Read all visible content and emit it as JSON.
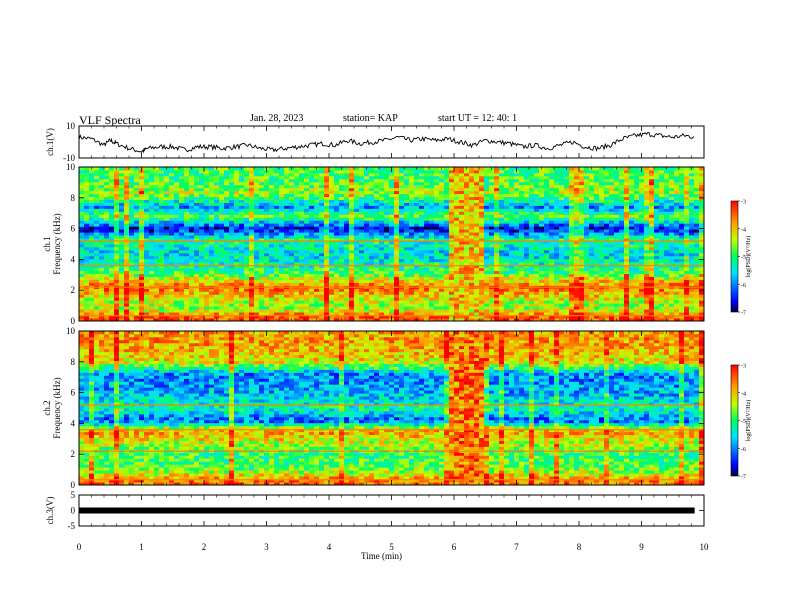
{
  "header": {
    "title": "VLF Spectra",
    "date": "Jan. 28, 2023",
    "station": "station= KAP",
    "start_ut": "start  UT =   12: 40: 1"
  },
  "chart_data": [
    {
      "type": "line",
      "name": "ch1-amplitude",
      "ylabel": "ch.1(V)",
      "ylim": [
        -10,
        10
      ],
      "yticks": [
        "10",
        "-10"
      ],
      "xlim": [
        0,
        10
      ],
      "x": [
        0,
        0.2,
        0.4,
        0.5,
        0.6,
        0.8,
        1.0,
        1.1,
        1.3,
        1.5,
        1.7,
        1.9,
        2.1,
        2.3,
        2.5,
        2.7,
        2.9,
        3.1,
        3.3,
        3.5,
        3.7,
        3.9,
        4.1,
        4.3,
        4.5,
        4.7,
        4.9,
        5.1,
        5.3,
        5.5,
        5.7,
        5.9,
        6.1,
        6.3,
        6.5,
        6.7,
        6.9,
        7.1,
        7.3,
        7.5,
        7.7,
        7.9,
        8.1,
        8.3,
        8.5,
        8.7,
        8.9,
        9.1,
        9.3,
        9.5,
        9.7,
        9.85
      ],
      "y": [
        3,
        2,
        -2,
        1,
        -1,
        -4,
        -6,
        -4,
        -3,
        -3,
        -5,
        -3,
        -3,
        -4,
        -3,
        -2,
        -4,
        -5,
        -4,
        -3,
        -2,
        -1,
        -2,
        1,
        -1,
        0,
        1,
        3,
        1,
        2,
        1,
        2,
        0,
        -2,
        1,
        0,
        -1,
        -3,
        -2,
        -4,
        -2,
        0,
        -3,
        -4,
        -2,
        2,
        4,
        5,
        4,
        3,
        4,
        3
      ]
    },
    {
      "type": "heatmap",
      "name": "ch1-spectrogram",
      "ylabel": "ch.1",
      "ylabel2": "Frequency (kHz)",
      "ylim": [
        0,
        10
      ],
      "yticks": [
        "0",
        "2",
        "4",
        "6",
        "8",
        "10"
      ],
      "xlim": [
        0,
        10
      ],
      "colorbar": {
        "label": "log(PSD)(V²/Hz)",
        "range": [
          -7,
          -3
        ],
        "ticks": [
          "-3",
          "-4",
          "-5",
          "-6",
          "-7"
        ]
      },
      "level_by_kHz": [
        {
          "f": 0.3,
          "v": -3.4
        },
        {
          "f": 0.8,
          "v": -4.6
        },
        {
          "f": 1.3,
          "v": -4.4
        },
        {
          "f": 2.2,
          "v": -3.5
        },
        {
          "f": 3.2,
          "v": -5.0
        },
        {
          "f": 4.4,
          "v": -5.6
        },
        {
          "f": 5.3,
          "v": -5.1
        },
        {
          "f": 6.0,
          "v": -6.7
        },
        {
          "f": 6.8,
          "v": -4.7
        },
        {
          "f": 7.4,
          "v": -5.9
        },
        {
          "f": 8.3,
          "v": -4.5
        },
        {
          "f": 9.3,
          "v": -4.9
        }
      ],
      "burst": {
        "start_min": 5.9,
        "end_min": 6.5,
        "level": -4.0
      }
    },
    {
      "type": "heatmap",
      "name": "ch2-spectrogram",
      "ylabel": "ch.2",
      "ylabel2": "Frequency (kHz)",
      "ylim": [
        0,
        10
      ],
      "yticks": [
        "0",
        "2",
        "4",
        "6",
        "8",
        "10"
      ],
      "xlim": [
        0,
        10
      ],
      "colorbar": {
        "label": "log(PSD)(V²/Hz)",
        "range": [
          -7,
          -3
        ],
        "ticks": [
          "-3",
          "-4",
          "-5",
          "-6",
          "-7"
        ]
      },
      "level_by_kHz": [
        {
          "f": 0.3,
          "v": -3.6
        },
        {
          "f": 1.0,
          "v": -4.7
        },
        {
          "f": 2.0,
          "v": -5.0
        },
        {
          "f": 3.5,
          "v": -3.8
        },
        {
          "f": 4.2,
          "v": -6.2
        },
        {
          "f": 5.0,
          "v": -5.2
        },
        {
          "f": 6.0,
          "v": -5.8
        },
        {
          "f": 7.2,
          "v": -6.0
        },
        {
          "f": 8.0,
          "v": -4.2
        },
        {
          "f": 9.2,
          "v": -3.8
        }
      ],
      "burst": {
        "start_min": 5.9,
        "end_min": 6.5,
        "level": -3.6
      }
    },
    {
      "type": "line",
      "name": "ch3-amplitude",
      "ylabel": "ch.3(V)",
      "ylim": [
        -5,
        5
      ],
      "yticks": [
        "5",
        "0",
        "-5"
      ],
      "xlim": [
        0,
        10
      ],
      "xlabel": "Time  (min)",
      "xticks": [
        "0",
        "1",
        "2",
        "3",
        "4",
        "5",
        "6",
        "7",
        "8",
        "9",
        "10"
      ],
      "x": [
        0,
        9.85
      ],
      "y": [
        0,
        0
      ]
    }
  ]
}
